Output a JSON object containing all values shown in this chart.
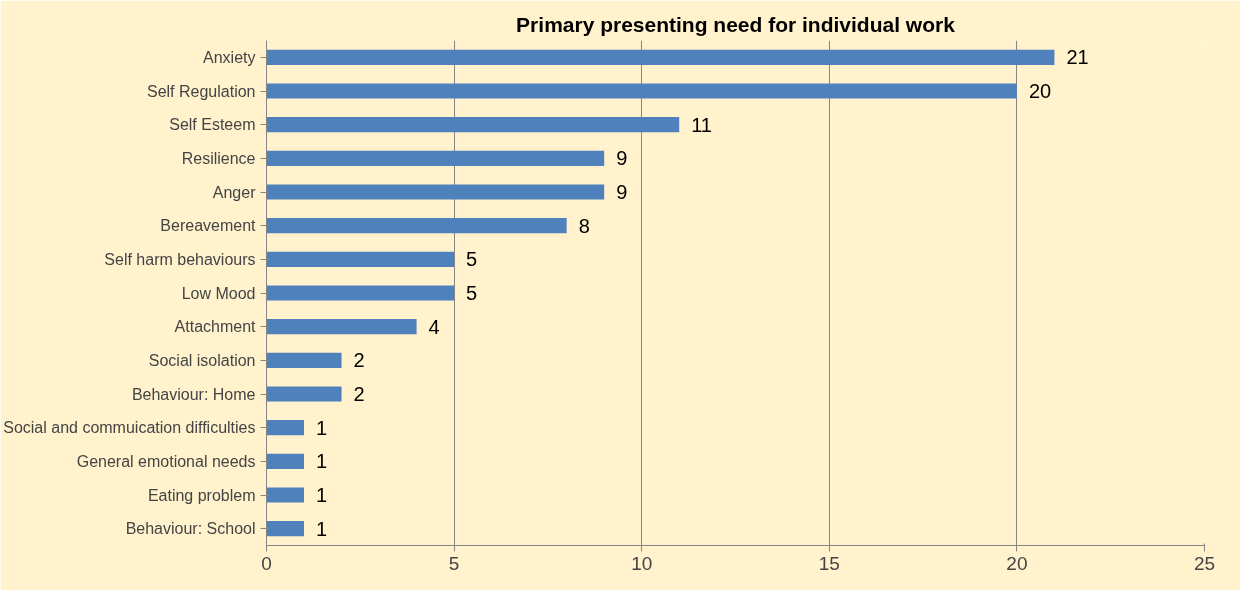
{
  "chart_data": {
    "type": "bar",
    "orientation": "horizontal",
    "title": "Primary presenting need for individual work",
    "categories": [
      "Anxiety",
      "Self Regulation",
      "Self Esteem",
      "Resilience",
      "Anger",
      "Bereavement",
      "Self harm behaviours",
      "Low Mood",
      "Attachment",
      "Social isolation",
      "Behaviour: Home",
      "Social and commuication difficulties",
      "General emotional needs",
      "Eating problem",
      "Behaviour: School"
    ],
    "values": [
      21,
      20,
      11,
      9,
      9,
      8,
      5,
      5,
      4,
      2,
      2,
      1,
      1,
      1,
      1
    ],
    "color": "#4f81bd",
    "xlim": [
      0,
      25
    ],
    "xticks": [
      0,
      5,
      10,
      15,
      20,
      25
    ],
    "grid": "x",
    "data_labels": true
  }
}
